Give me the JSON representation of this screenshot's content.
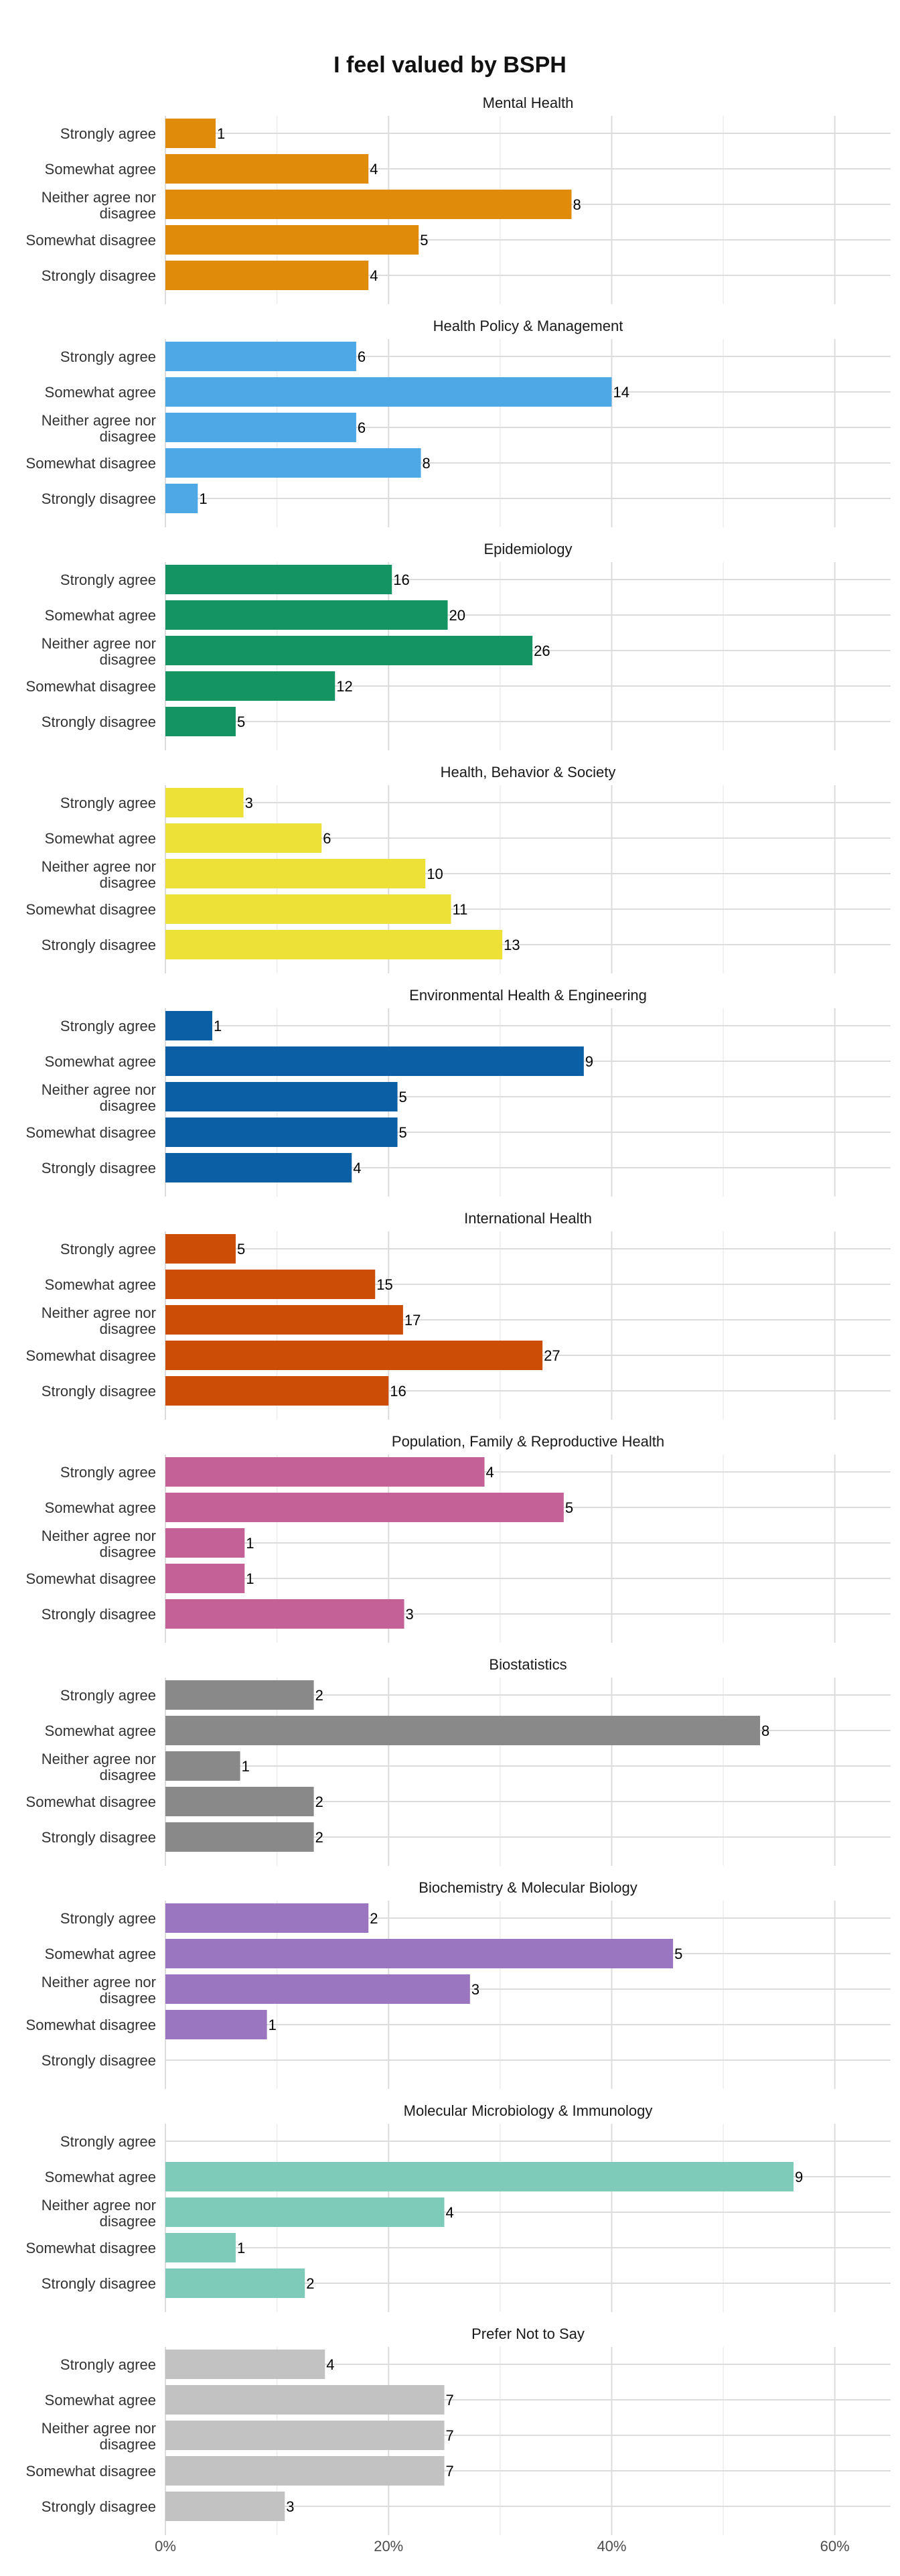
{
  "chart_data": {
    "type": "bar",
    "orientation": "horizontal",
    "title": "I feel valued by BSPH",
    "categories": [
      "Strongly agree",
      "Somewhat agree",
      "Neither agree nor disagree",
      "Somewhat disagree",
      "Strongly disagree"
    ],
    "x_ticks": [
      "0%",
      "20%",
      "40%",
      "60%"
    ],
    "xlim": [
      0,
      0.65
    ],
    "x_tick_values": [
      0,
      0.2,
      0.4,
      0.6
    ],
    "grid": true,
    "legend": "none",
    "facets": [
      {
        "name": "Mental Health",
        "color": "#E08B0A",
        "counts": [
          1,
          4,
          8,
          5,
          4
        ],
        "percents": [
          4.5,
          18.2,
          36.4,
          22.7,
          18.2
        ]
      },
      {
        "name": "Health Policy & Management",
        "color": "#4FA8E6",
        "counts": [
          6,
          14,
          6,
          8,
          1
        ],
        "percents": [
          17.1,
          40.0,
          17.1,
          22.9,
          2.9
        ]
      },
      {
        "name": "Epidemiology",
        "color": "#149463",
        "counts": [
          16,
          20,
          26,
          12,
          5
        ],
        "percents": [
          20.3,
          25.3,
          32.9,
          15.2,
          6.3
        ]
      },
      {
        "name": "Health, Behavior & Society",
        "color": "#EDE036",
        "counts": [
          3,
          6,
          10,
          11,
          13
        ],
        "percents": [
          7.0,
          14.0,
          23.3,
          25.6,
          30.2
        ]
      },
      {
        "name": "Environmental Health & Engineering",
        "color": "#0B5FA5",
        "counts": [
          1,
          9,
          5,
          5,
          4
        ],
        "percents": [
          4.2,
          37.5,
          20.8,
          20.8,
          16.7
        ]
      },
      {
        "name": "International Health",
        "color": "#CC4D06",
        "counts": [
          5,
          15,
          17,
          27,
          16
        ],
        "percents": [
          6.3,
          18.8,
          21.3,
          33.8,
          20.0
        ]
      },
      {
        "name": "Population, Family & Reproductive Health",
        "color": "#C46197",
        "counts": [
          4,
          5,
          1,
          1,
          3
        ],
        "percents": [
          28.6,
          35.7,
          7.1,
          7.1,
          21.4
        ]
      },
      {
        "name": "Biostatistics",
        "color": "#898989",
        "counts": [
          2,
          8,
          1,
          2,
          2
        ],
        "percents": [
          13.3,
          53.3,
          6.7,
          13.3,
          13.3
        ]
      },
      {
        "name": "Biochemistry & Molecular Biology",
        "color": "#9B76C0",
        "counts": [
          2,
          5,
          3,
          1,
          null
        ],
        "percents": [
          18.2,
          45.5,
          27.3,
          9.1,
          null
        ]
      },
      {
        "name": "Molecular Microbiology & Immunology",
        "color": "#7ECBB9",
        "counts": [
          null,
          9,
          4,
          1,
          2
        ],
        "percents": [
          null,
          56.3,
          25.0,
          6.3,
          12.5
        ]
      },
      {
        "name": "Prefer Not to Say",
        "color": "#C2C2C2",
        "counts": [
          4,
          7,
          7,
          7,
          3
        ],
        "percents": [
          14.3,
          25.0,
          25.0,
          25.0,
          10.7
        ]
      }
    ]
  }
}
